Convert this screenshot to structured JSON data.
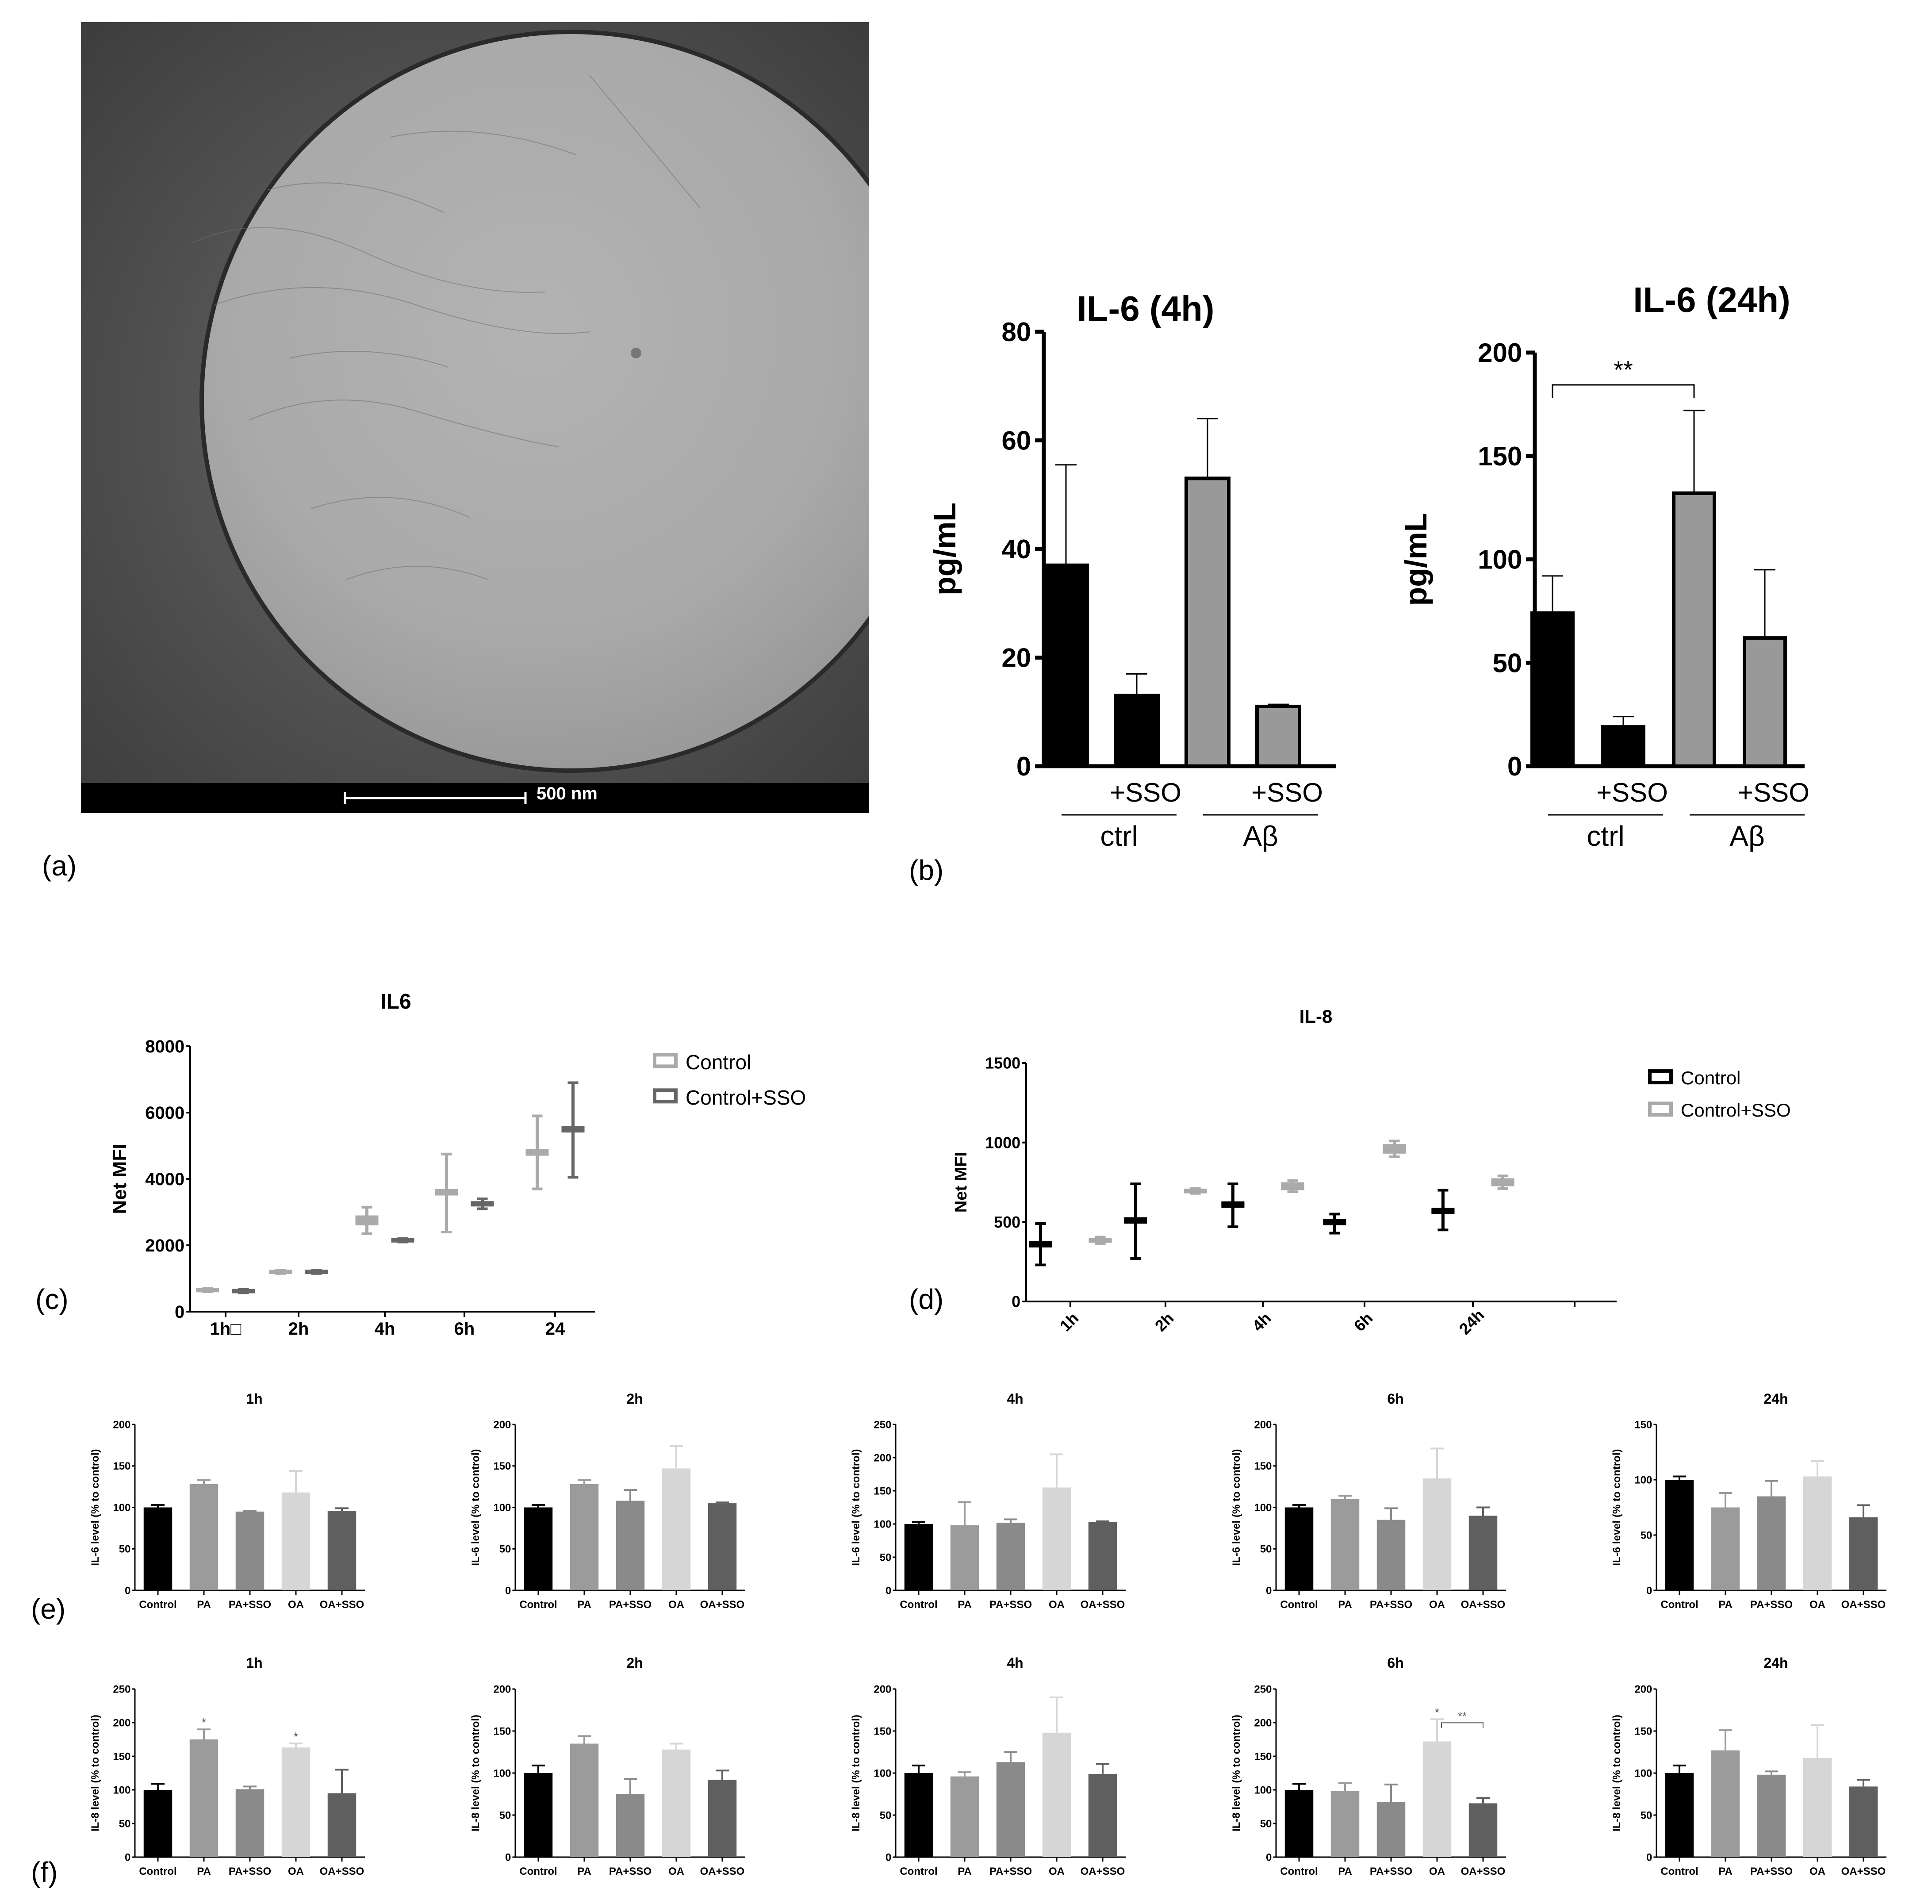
{
  "panel_labels": {
    "a": "(a)",
    "b": "(b)",
    "c": "(c)",
    "d": "(d)",
    "e": "(e)",
    "f": "(f)"
  },
  "micrograph": {
    "scale_bar_label": "500 nm"
  },
  "colors": {
    "black": "#000000",
    "gray": "#999999",
    "light_gray": "#d3d3d3",
    "mid_gray": "#8a8a8a",
    "dark_gray": "#5f5f5f",
    "dark_ctrl_sso": "#666666"
  },
  "chart_data": [
    {
      "id": "b1",
      "type": "bar",
      "title": "IL-6 (4h)",
      "ylabel": "pg/mL",
      "ylim": [
        0,
        80
      ],
      "yticks": [
        0,
        20,
        40,
        60,
        80
      ],
      "categories": [
        "ctrl",
        "+SSO",
        "Aβ",
        "+SSO"
      ],
      "bar_labels": [
        "",
        "+SSO",
        "",
        "+SSO"
      ],
      "group_labels": [
        "ctrl",
        "Aβ"
      ],
      "values": [
        37,
        13,
        53,
        11
      ],
      "errors": [
        18.5,
        4,
        11,
        0.4
      ],
      "bar_colors": [
        "#000000",
        "#000000",
        "#999999",
        "#999999"
      ]
    },
    {
      "id": "b2",
      "type": "bar",
      "title": "IL-6 (24h)",
      "ylabel": "pg/mL",
      "ylim": [
        0,
        200
      ],
      "yticks": [
        0,
        50,
        100,
        150,
        200
      ],
      "categories": [
        "ctrl",
        "+SSO",
        "Aβ",
        "+SSO"
      ],
      "bar_labels": [
        "",
        "+SSO",
        "",
        "+SSO"
      ],
      "group_labels": [
        "ctrl",
        "Aβ"
      ],
      "values": [
        74,
        19,
        132,
        62
      ],
      "errors": [
        18,
        5,
        40,
        33
      ],
      "bar_colors": [
        "#000000",
        "#000000",
        "#999999",
        "#999999"
      ],
      "significance": [
        {
          "from": 0,
          "to": 2,
          "label": "**"
        }
      ]
    },
    {
      "id": "c",
      "type": "box",
      "title": "IL6",
      "ylabel": "Net MFI",
      "ylim": [
        0,
        8000
      ],
      "yticks": [
        0,
        2000,
        4000,
        6000,
        8000
      ],
      "categories": [
        "1h□",
        "2h",
        "4h",
        "6h",
        "24"
      ],
      "legend_position": "top-right",
      "series": [
        {
          "name": "Control",
          "color": "#aaaaaa",
          "mid": [
            650,
            1200,
            2750,
            3600,
            4800
          ],
          "q1": [
            600,
            1140,
            2600,
            3500,
            4700
          ],
          "q3": [
            700,
            1260,
            2900,
            3700,
            4900
          ],
          "min": [
            600,
            1150,
            2350,
            2400,
            3700
          ],
          "max": [
            700,
            1250,
            3150,
            4750,
            5900
          ]
        },
        {
          "name": "Control+SSO",
          "color": "#666666",
          "mid": [
            620,
            1200,
            2150,
            3250,
            5500
          ],
          "q1": [
            570,
            1140,
            2100,
            3170,
            5400
          ],
          "q3": [
            670,
            1260,
            2200,
            3330,
            5600
          ],
          "min": [
            570,
            1150,
            2100,
            3100,
            4050
          ],
          "max": [
            670,
            1250,
            2200,
            3400,
            6900
          ]
        }
      ]
    },
    {
      "id": "d",
      "type": "box",
      "title": "IL-8",
      "ylabel": "Net MFI",
      "ylim": [
        0,
        1500
      ],
      "yticks": [
        0,
        500,
        1000,
        1500
      ],
      "categories": [
        "1h",
        "2h",
        "4h",
        "6h",
        "24h"
      ],
      "legend_position": "top-right",
      "series": [
        {
          "name": "Control",
          "color": "#000000",
          "mid": [
            360,
            510,
            610,
            500,
            570
          ],
          "q1": [
            340,
            490,
            590,
            480,
            550
          ],
          "q3": [
            380,
            530,
            630,
            520,
            590
          ],
          "min": [
            230,
            270,
            470,
            430,
            450
          ],
          "max": [
            490,
            740,
            740,
            550,
            700
          ]
        },
        {
          "name": "Control+SSO",
          "color": "#aaaaaa",
          "mid": [
            385,
            695,
            725,
            960,
            750
          ],
          "q1": [
            370,
            680,
            700,
            930,
            725
          ],
          "q3": [
            400,
            710,
            750,
            990,
            775
          ],
          "min": [
            365,
            680,
            690,
            910,
            710
          ],
          "max": [
            405,
            710,
            760,
            1010,
            790
          ]
        }
      ]
    },
    {
      "id": "e1",
      "type": "bar",
      "title": "1h",
      "ylabel": "IL-6 level (% to control)",
      "ylim": [
        0,
        200
      ],
      "yticks": [
        0,
        50,
        100,
        150,
        200
      ],
      "categories": [
        "Control",
        "PA",
        "PA+SSO",
        "OA",
        "OA+SSO"
      ],
      "values": [
        100,
        128,
        95,
        118,
        96
      ],
      "errors": [
        3,
        5,
        1,
        26,
        3
      ]
    },
    {
      "id": "e2",
      "type": "bar",
      "title": "2h",
      "ylabel": "IL-6 level (% to control)",
      "ylim": [
        0,
        200
      ],
      "yticks": [
        0,
        50,
        100,
        150,
        200
      ],
      "categories": [
        "Control",
        "PA",
        "PA+SSO",
        "OA",
        "OA+SSO"
      ],
      "values": [
        100,
        128,
        108,
        147,
        105
      ],
      "errors": [
        3,
        5,
        13,
        27,
        1
      ]
    },
    {
      "id": "e3",
      "type": "bar",
      "title": "4h",
      "ylabel": "IL-6 level (% to control)",
      "ylim": [
        0,
        250
      ],
      "yticks": [
        0,
        50,
        100,
        150,
        200,
        250
      ],
      "categories": [
        "Control",
        "PA",
        "PA+SSO",
        "OA",
        "OA+SSO"
      ],
      "values": [
        100,
        98,
        102,
        155,
        103
      ],
      "errors": [
        3,
        35,
        5,
        50,
        1
      ]
    },
    {
      "id": "e4",
      "type": "bar",
      "title": "6h",
      "ylabel": "IL-6 level (% to control)",
      "ylim": [
        0,
        200
      ],
      "yticks": [
        0,
        50,
        100,
        150,
        200
      ],
      "categories": [
        "Control",
        "PA",
        "PA+SSO",
        "OA",
        "OA+SSO"
      ],
      "values": [
        100,
        110,
        85,
        135,
        90
      ],
      "errors": [
        3,
        4,
        14,
        36,
        10
      ]
    },
    {
      "id": "e5",
      "type": "bar",
      "title": "24h",
      "ylabel": "IL-6 level (% to control)",
      "ylim": [
        0,
        150
      ],
      "yticks": [
        0,
        50,
        100,
        150
      ],
      "categories": [
        "Control",
        "PA",
        "PA+SSO",
        "OA",
        "OA+SSO"
      ],
      "values": [
        100,
        75,
        85,
        103,
        66
      ],
      "errors": [
        3,
        13,
        14,
        14,
        11
      ]
    },
    {
      "id": "f1",
      "type": "bar",
      "title": "1h",
      "ylabel": "IL-8 level (% to control)",
      "ylim": [
        0,
        250
      ],
      "yticks": [
        0,
        50,
        100,
        150,
        200,
        250
      ],
      "categories": [
        "Control",
        "PA",
        "PA+SSO",
        "OA",
        "OA+SSO"
      ],
      "values": [
        100,
        175,
        101,
        163,
        95
      ],
      "errors": [
        9,
        15,
        4,
        6,
        35
      ],
      "marks": [
        "",
        "*",
        "",
        "*",
        ""
      ]
    },
    {
      "id": "f2",
      "type": "bar",
      "title": "2h",
      "ylabel": "IL-8 level (% to control)",
      "ylim": [
        0,
        200
      ],
      "yticks": [
        0,
        50,
        100,
        150,
        200
      ],
      "categories": [
        "Control",
        "PA",
        "PA+SSO",
        "OA",
        "OA+SSO"
      ],
      "values": [
        100,
        135,
        75,
        128,
        92
      ],
      "errors": [
        9,
        9,
        18,
        7,
        11
      ]
    },
    {
      "id": "f3",
      "type": "bar",
      "title": "4h",
      "ylabel": "IL-8 level (% to control)",
      "ylim": [
        0,
        200
      ],
      "yticks": [
        0,
        50,
        100,
        150,
        200
      ],
      "categories": [
        "Control",
        "PA",
        "PA+SSO",
        "OA",
        "OA+SSO"
      ],
      "values": [
        100,
        96,
        113,
        148,
        99
      ],
      "errors": [
        9,
        5,
        12,
        42,
        12
      ]
    },
    {
      "id": "f4",
      "type": "bar",
      "title": "6h",
      "ylabel": "IL-8 level (% to control)",
      "ylim": [
        0,
        250
      ],
      "yticks": [
        0,
        50,
        100,
        150,
        200,
        250
      ],
      "categories": [
        "Control",
        "PA",
        "PA+SSO",
        "OA",
        "OA+SSO"
      ],
      "values": [
        100,
        98,
        82,
        172,
        80
      ],
      "errors": [
        9,
        12,
        26,
        33,
        8
      ],
      "marks": [
        "",
        "",
        "",
        "*",
        ""
      ],
      "significance": [
        {
          "from": 3,
          "to": 4,
          "label": "**"
        }
      ]
    },
    {
      "id": "f5",
      "type": "bar",
      "title": "24h",
      "ylabel": "IL-8 level (% to control)",
      "ylim": [
        0,
        200
      ],
      "yticks": [
        0,
        50,
        100,
        150,
        200
      ],
      "categories": [
        "Control",
        "PA",
        "PA+SSO",
        "OA",
        "OA+SSO"
      ],
      "values": [
        100,
        127,
        98,
        118,
        84
      ],
      "errors": [
        9,
        24,
        4,
        39,
        8
      ]
    }
  ]
}
